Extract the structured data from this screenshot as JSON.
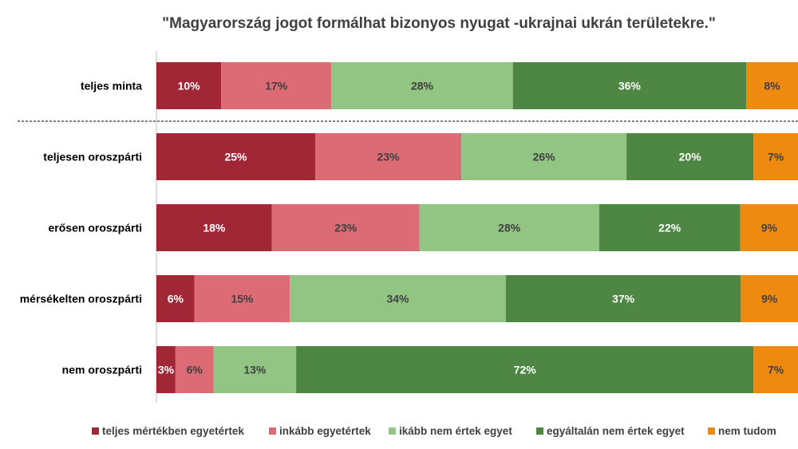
{
  "chart_data": {
    "type": "bar",
    "orientation": "horizontal",
    "stacked": true,
    "normalized": true,
    "title": "\"Magyarország jogot formálhat bizonyos nyugat -ukrajnai ukrán területekre.\"",
    "categories": [
      "teljes minta",
      "teljesen oroszpárti",
      "erősen oroszpárti",
      "mérsékelten oroszpárti",
      "nem oroszpárti"
    ],
    "series": [
      {
        "name": "teljes mértékben egyetértek",
        "color": "#A12737",
        "label_color": "#FFFFFF",
        "values": [
          10,
          25,
          18,
          6,
          3
        ],
        "labels": [
          "10%",
          "25%",
          "18%",
          "6%",
          "3%"
        ]
      },
      {
        "name": "inkább egyetértek",
        "color": "#DC6B75",
        "label_color": "#404040",
        "values": [
          17,
          23,
          23,
          15,
          6
        ],
        "labels": [
          "17%",
          "23%",
          "23%",
          "15%",
          "6%"
        ]
      },
      {
        "name": "ikább nem értek egyet",
        "color": "#92C484",
        "label_color": "#404040",
        "values": [
          28,
          26,
          28,
          34,
          13
        ],
        "labels": [
          "28%",
          "26%",
          "28%",
          "34%",
          "13%"
        ]
      },
      {
        "name": "egyáltalán nem értek egyet",
        "color": "#4E8744",
        "label_color": "#FFFFFF",
        "values": [
          36,
          20,
          22,
          37,
          72
        ],
        "labels": [
          "36%",
          "20%",
          "22%",
          "37%",
          "72%"
        ]
      },
      {
        "name": "nem tudom",
        "color": "#EE8A10",
        "label_color": "#404040",
        "values": [
          8,
          7,
          9,
          9,
          7
        ],
        "labels": [
          "8%",
          "7%",
          "9%",
          "9%",
          "7%"
        ]
      }
    ],
    "xlim": [
      0,
      100
    ],
    "grid": false,
    "separator_after_category": "teljes minta",
    "legend_position": "bottom"
  }
}
